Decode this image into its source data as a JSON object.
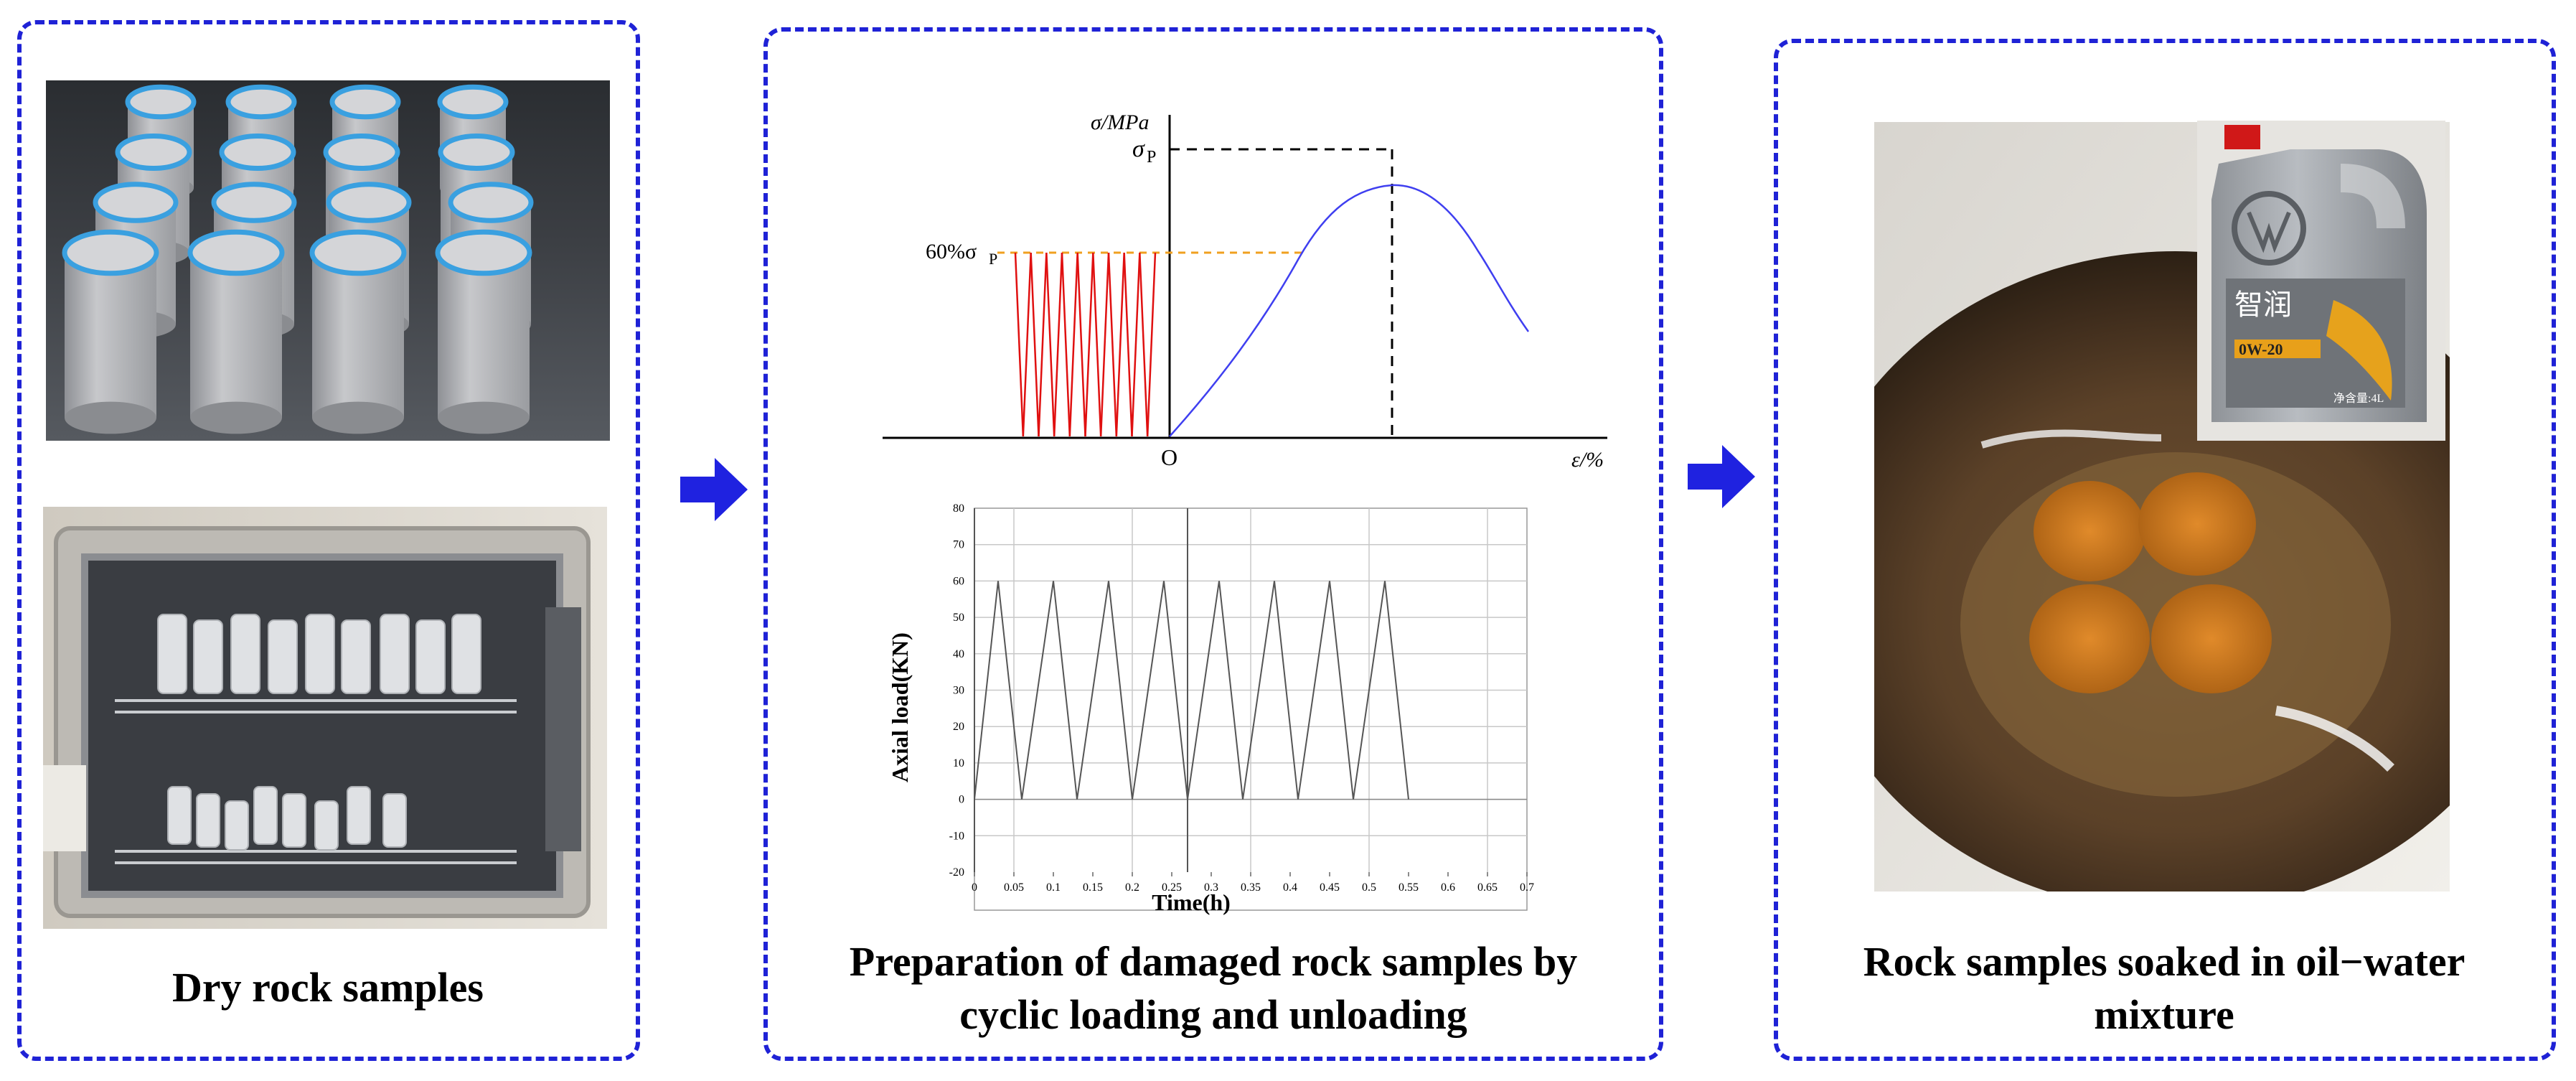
{
  "panels": {
    "dry": {
      "caption": "Dry rock samples",
      "photo_top_icon": "rock-cylinders-photo",
      "photo_bottom_icon": "drying-oven-photo"
    },
    "cyclic": {
      "caption_line1": "Preparation of damaged rock samples by",
      "caption_line2": "cyclic loading and unloading"
    },
    "soaked": {
      "caption_line1": "Rock samples soaked in oil−water",
      "caption_line2": "mixture",
      "photo_icon": "oil-water-bowl-photo",
      "bottle_brand": "智润",
      "bottle_grade": "0W-20",
      "bottle_volume": "净含量:4L"
    }
  },
  "stress_strain": {
    "ylabel": "σ/MPa",
    "peak_label": "σ",
    "peak_sub": "P",
    "level_label": "60%σ",
    "level_sub": "P",
    "origin_label": "O",
    "xlabel": "ε/%",
    "cycles": 9,
    "curve_color": "#3f3ff0",
    "cycle_color": "#e01010",
    "level_line_color": "#f0a020"
  },
  "chart_data": {
    "type": "line",
    "xlabel": "Time(h)",
    "ylabel": "Axial load(KN)",
    "xlim": [
      0,
      0.7
    ],
    "ylim": [
      -20,
      80
    ],
    "xticks": [
      "0",
      "0.05",
      "0.1",
      "0.15",
      "0.2",
      "0.25",
      "0.3",
      "0.35",
      "0.4",
      "0.45",
      "0.5",
      "0.55",
      "0.6",
      "0.65",
      "0.7"
    ],
    "yticks": [
      "80",
      "70",
      "60",
      "50",
      "40",
      "30",
      "20",
      "10",
      "0",
      "-10",
      "-20"
    ],
    "grid": true,
    "series": [
      {
        "x": [
          0,
          0.03,
          0.06,
          0.1,
          0.13,
          0.17,
          0.2,
          0.24,
          0.27,
          0.31,
          0.34,
          0.38,
          0.41,
          0.45,
          0.48,
          0.52,
          0.55
        ],
        "y": [
          0,
          60,
          0,
          60,
          0,
          60,
          0,
          60,
          0,
          60,
          0,
          60,
          0,
          60,
          0,
          60,
          0
        ]
      }
    ]
  }
}
